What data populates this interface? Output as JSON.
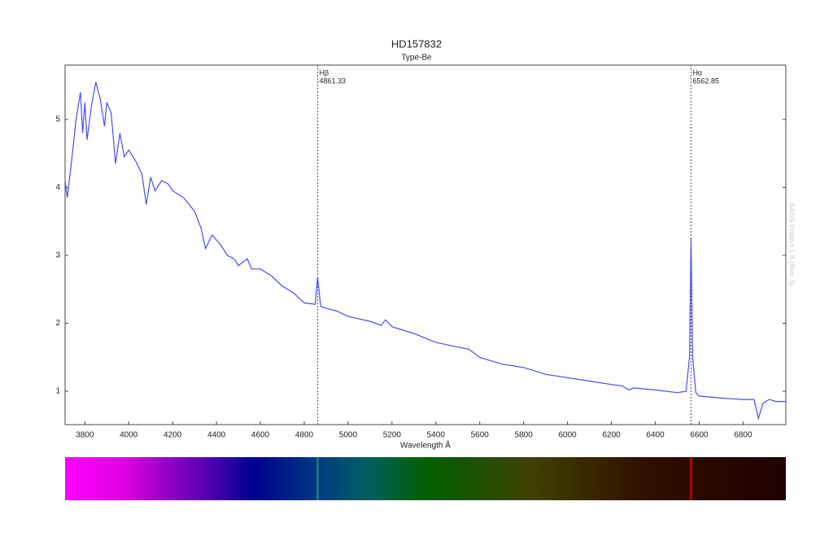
{
  "chart_data": {
    "type": "line",
    "title": "HD157832",
    "subtitle": "Type-Be",
    "x_label": "Wavelength Å",
    "side_text": "BASS Project 1.9 (Rev 3)",
    "x": [
      3710,
      3720,
      3740,
      3760,
      3780,
      3790,
      3800,
      3810,
      3830,
      3850,
      3870,
      3890,
      3900,
      3920,
      3940,
      3960,
      3980,
      4000,
      4030,
      4060,
      4080,
      4100,
      4120,
      4150,
      4180,
      4200,
      4250,
      4300,
      4330,
      4350,
      4380,
      4420,
      4450,
      4480,
      4500,
      4540,
      4560,
      4600,
      4650,
      4700,
      4750,
      4800,
      4850,
      4861,
      4875,
      4900,
      4950,
      5000,
      5100,
      5150,
      5170,
      5200,
      5300,
      5400,
      5500,
      5550,
      5600,
      5700,
      5800,
      5900,
      6000,
      6100,
      6200,
      6250,
      6280,
      6300,
      6400,
      6500,
      6540,
      6556,
      6563,
      6570,
      6585,
      6600,
      6700,
      6800,
      6850,
      6870,
      6890,
      6920,
      6950,
      6995
    ],
    "series": [
      {
        "name": "HD157832",
        "color": "#4b4bf0",
        "values": [
          4.1,
          3.85,
          4.4,
          5.0,
          5.4,
          4.8,
          5.25,
          4.7,
          5.2,
          5.55,
          5.3,
          4.9,
          5.25,
          5.1,
          4.35,
          4.8,
          4.45,
          4.55,
          4.4,
          4.2,
          3.75,
          4.15,
          3.95,
          4.1,
          4.05,
          3.95,
          3.85,
          3.65,
          3.4,
          3.1,
          3.3,
          3.15,
          3.0,
          2.95,
          2.85,
          2.95,
          2.8,
          2.8,
          2.7,
          2.55,
          2.45,
          2.3,
          2.28,
          2.68,
          2.25,
          2.22,
          2.18,
          2.1,
          2.03,
          1.97,
          2.05,
          1.95,
          1.85,
          1.72,
          1.65,
          1.62,
          1.5,
          1.4,
          1.35,
          1.25,
          1.2,
          1.15,
          1.1,
          1.08,
          1.02,
          1.05,
          1.02,
          0.98,
          1.0,
          1.5,
          3.25,
          1.5,
          0.98,
          0.93,
          0.9,
          0.88,
          0.88,
          0.6,
          0.82,
          0.88,
          0.85,
          0.85
        ]
      }
    ],
    "lines": [
      {
        "label": "Hβ",
        "value": 4861.33
      },
      {
        "label": "Hα",
        "value": 6562.85
      }
    ],
    "xlim": [
      3710,
      6995
    ],
    "ylim": [
      0.51,
      5.8
    ],
    "xticks": [
      3800,
      4000,
      4200,
      4400,
      4600,
      4800,
      5000,
      5200,
      5400,
      5600,
      5800,
      6000,
      6200,
      6400,
      6600,
      6800
    ],
    "yticks": [
      1,
      2,
      3,
      4,
      5
    ],
    "grid": false
  }
}
